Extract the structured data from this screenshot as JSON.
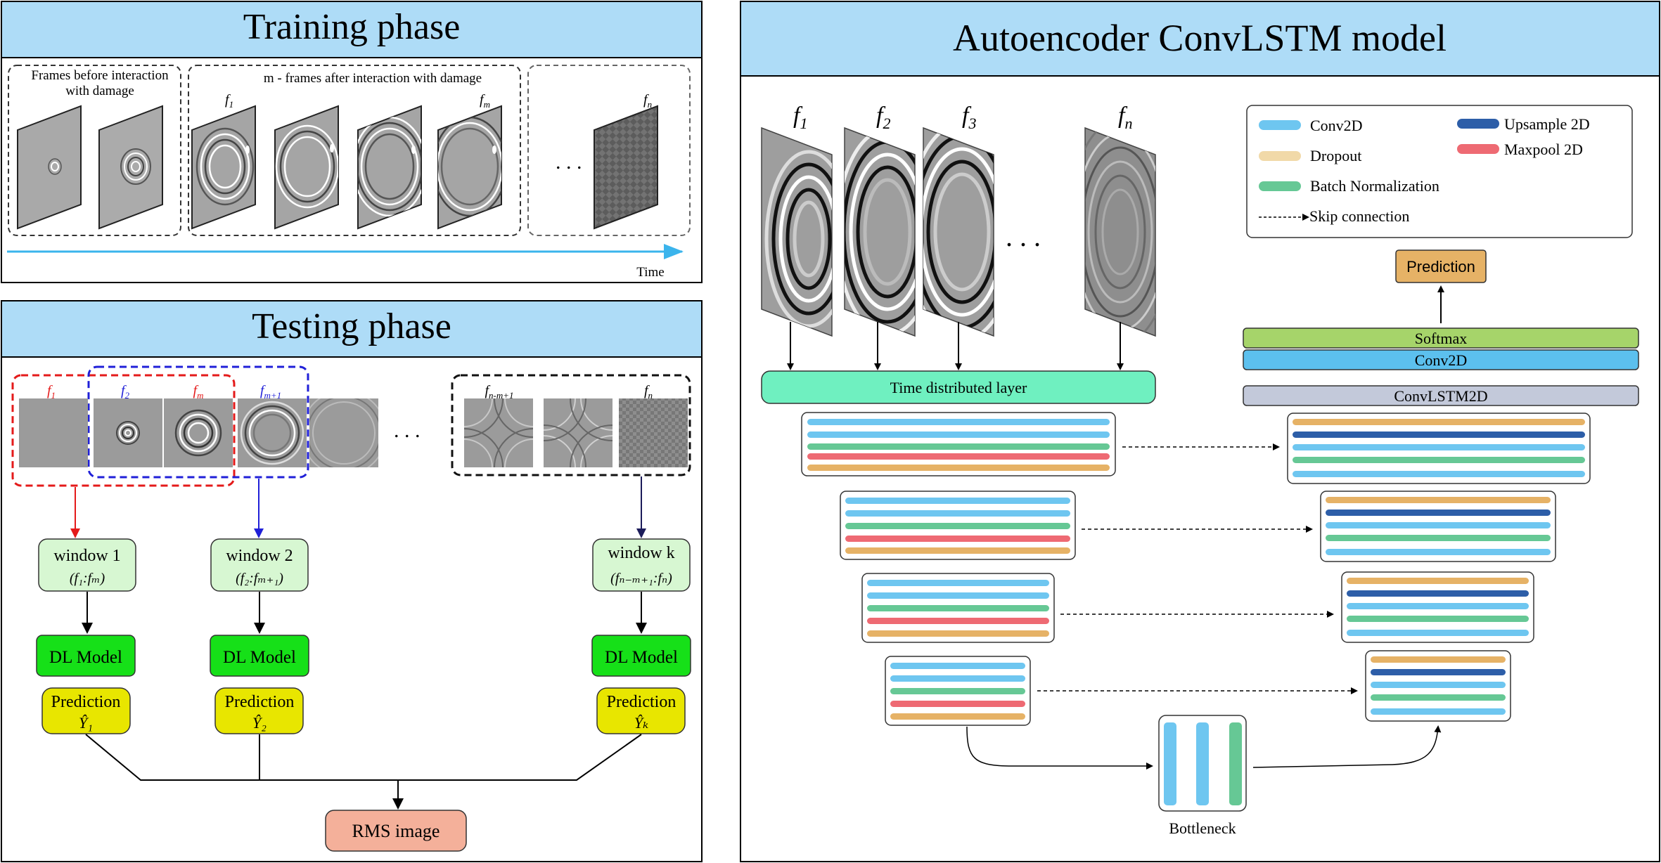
{
  "training": {
    "title": "Training phase",
    "group_before": "Frames before interaction",
    "group_before_2": "with damage",
    "group_after": "m - frames after interaction with damage",
    "frame_labels": [
      "f",
      "f",
      "f"
    ],
    "frame_subs": [
      "1",
      "m",
      "n"
    ],
    "ellipsis": ". . .",
    "time_label": "Time"
  },
  "testing": {
    "title": "Testing phase",
    "labels": [
      {
        "base": "f",
        "sub": "1"
      },
      {
        "base": "f",
        "sub": "2"
      },
      {
        "base": "f",
        "sub": "m"
      },
      {
        "base": "f",
        "sub": "m+1"
      },
      {
        "base": "f",
        "sub": "n-m+1"
      },
      {
        "base": "f",
        "sub": "n"
      }
    ],
    "ellipsis": ". . .",
    "windows": [
      {
        "title": "window 1",
        "range": "(f₁:fₘ)",
        "model": "DL Model",
        "pred": "Prediction",
        "yhat": "Ŷ₁"
      },
      {
        "title": "window 2",
        "range": "(f₂:fₘ₊₁)",
        "model": "DL Model",
        "pred": "Prediction",
        "yhat": "Ŷ₂"
      },
      {
        "title": "window k",
        "range": "(fₙ₋ₘ₊₁:fₙ)",
        "model": "DL Model",
        "pred": "Prediction",
        "yhat": "Ŷₖ"
      }
    ],
    "rms": "RMS image"
  },
  "autoencoder": {
    "title": "Autoencoder ConvLSTM model",
    "frames": [
      {
        "base": "f",
        "sub": "1"
      },
      {
        "base": "f",
        "sub": "2"
      },
      {
        "base": "f",
        "sub": "3"
      },
      {
        "base": "f",
        "sub": "n"
      }
    ],
    "ellipsis": ". . .",
    "time_distributed": "Time distributed layer",
    "legend": {
      "conv2d": "Conv2D",
      "dropout": "Dropout",
      "batchnorm": "Batch Normalization",
      "skip": "Skip connection",
      "upsample": "Upsample 2D",
      "maxpool": "Maxpool 2D"
    },
    "prediction": "Prediction",
    "softmax": "Softmax",
    "conv2d_out": "Conv2D",
    "convlstm": "ConvLSTM2D",
    "bottleneck": "Bottleneck"
  },
  "colors": {
    "header_blue": "#aedcf7",
    "conv2d": "#6ec6f0",
    "dropout": "#e9b462",
    "batchnorm": "#66c895",
    "upsample": "#2d5ea8",
    "maxpool": "#ee6a73",
    "time_layer": "#6ff0c0",
    "softmax": "#a6d46a",
    "conv2d_out": "#5cc0ee",
    "convlstm": "#c3c9da",
    "prediction_box": "#e6b266",
    "window_box": "#d7f7d2",
    "dl_model": "#16e018",
    "pred_yellow": "#e8e600",
    "rms": "#f4b09a",
    "red": "#e41a1a",
    "blue": "#2020d8"
  }
}
